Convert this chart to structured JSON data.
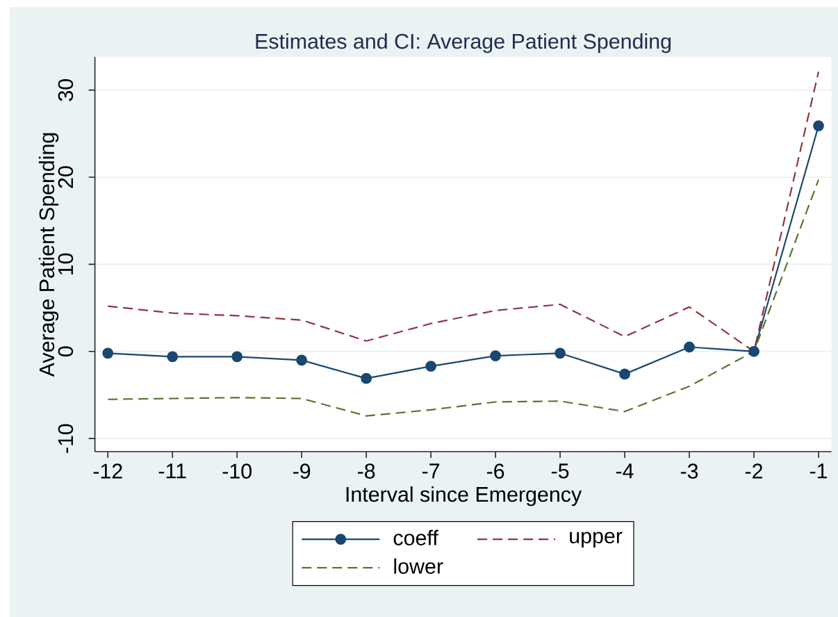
{
  "chart_data": {
    "type": "line",
    "title": "Estimates and CI: Average Patient Spending",
    "xlabel": "Interval since Emergency",
    "ylabel": "Average Patient Spending",
    "x": [
      -12,
      -11,
      -10,
      -9,
      -8,
      -7,
      -6,
      -5,
      -4,
      -3,
      -2,
      -1
    ],
    "xlim": [
      -12.2,
      -0.8
    ],
    "xticks": [
      -12,
      -11,
      -10,
      -9,
      -8,
      -7,
      -6,
      -5,
      -4,
      -3,
      -2,
      -1
    ],
    "ylim": [
      -11.5,
      33.8
    ],
    "yticks": [
      -10,
      0,
      10,
      20,
      30
    ],
    "grid": "y",
    "legend": "bottom",
    "series": [
      {
        "name": "coeff",
        "color": "#1a476f",
        "marker": "circle",
        "values": [
          -0.2,
          -0.6,
          -0.6,
          -1.0,
          -3.1,
          -1.7,
          -0.5,
          -0.2,
          -2.6,
          0.5,
          0,
          25.9
        ]
      },
      {
        "name": "upper",
        "color": "#90353b",
        "line_style": "dashed",
        "values": [
          5.2,
          4.4,
          4.1,
          3.6,
          1.2,
          3.2,
          4.7,
          5.4,
          1.7,
          5.1,
          0,
          32.1
        ]
      },
      {
        "name": "lower",
        "color": "#55752f",
        "line_style": "dashed",
        "values": [
          -5.5,
          -5.4,
          -5.3,
          -5.4,
          -7.4,
          -6.7,
          -5.8,
          -5.7,
          -6.9,
          -4.0,
          0,
          19.7
        ]
      }
    ]
  }
}
